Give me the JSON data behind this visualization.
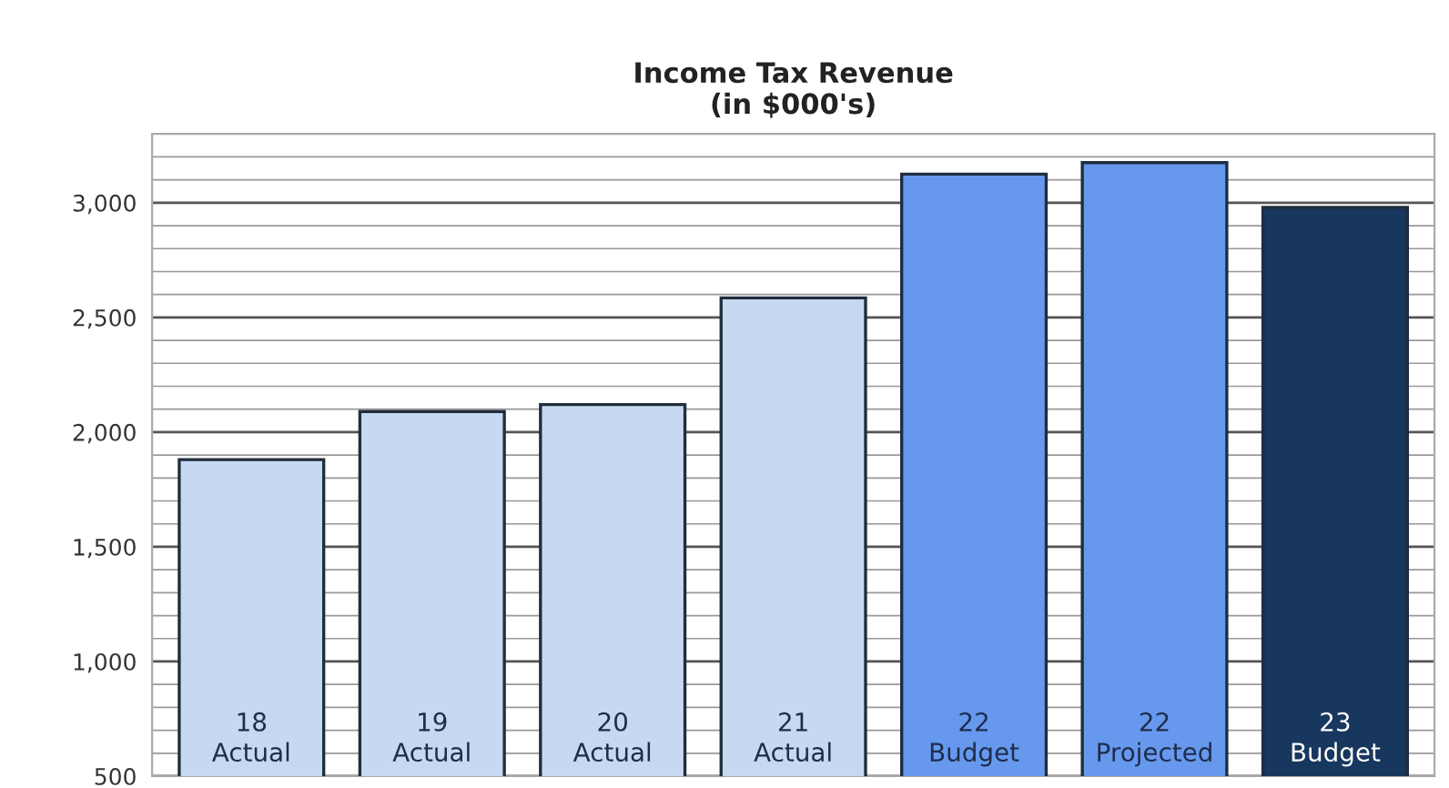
{
  "chart_data": {
    "type": "bar",
    "title": "Income Tax Revenue\n(in $000's)",
    "categories": [
      "18\nActual",
      "19\nActual",
      "20\nActual",
      "21\nActual",
      "22\nBudget",
      "22\nProjected",
      "23\nBudget"
    ],
    "values": [
      1880,
      2090,
      2120,
      2585,
      3125,
      3175,
      2980
    ],
    "colors": [
      "#c6d9f1",
      "#c6d9f1",
      "#c6d9f1",
      "#c6d9f1",
      "#6699ee",
      "#6699ee",
      "#17375e"
    ],
    "ylim": [
      500,
      3300
    ],
    "yticks": [
      500,
      {
        "value": 600,
        "label": null
      },
      {
        "value": 700,
        "label": null
      },
      {
        "value": 800,
        "label": null
      },
      {
        "value": 900,
        "label": null
      },
      {
        "value": 1000,
        "label": "1,000"
      },
      {
        "value": 1100,
        "label": null
      },
      {
        "value": 1200,
        "label": null
      },
      {
        "value": 1300,
        "label": null
      },
      {
        "value": 1400,
        "label": null
      },
      {
        "value": 1500,
        "label": "1,500"
      },
      {
        "value": 1600,
        "label": null
      },
      {
        "value": 1700,
        "label": null
      },
      {
        "value": 1800,
        "label": null
      },
      {
        "value": 1900,
        "label": null
      },
      {
        "value": 2000,
        "label": "2,000"
      },
      {
        "value": 2100,
        "label": null
      },
      {
        "value": 2200,
        "label": null
      },
      {
        "value": 2300,
        "label": null
      },
      {
        "value": 2400,
        "label": null
      },
      {
        "value": 2500,
        "label": "2,500"
      },
      {
        "value": 2600,
        "label": null
      },
      {
        "value": 2700,
        "label": null
      },
      {
        "value": 2800,
        "label": null
      },
      {
        "value": 2900,
        "label": null
      },
      {
        "value": 3000,
        "label": "3,000"
      },
      {
        "value": 3100,
        "label": null
      },
      {
        "value": 3200,
        "label": null
      }
    ],
    "grid": "y"
  }
}
